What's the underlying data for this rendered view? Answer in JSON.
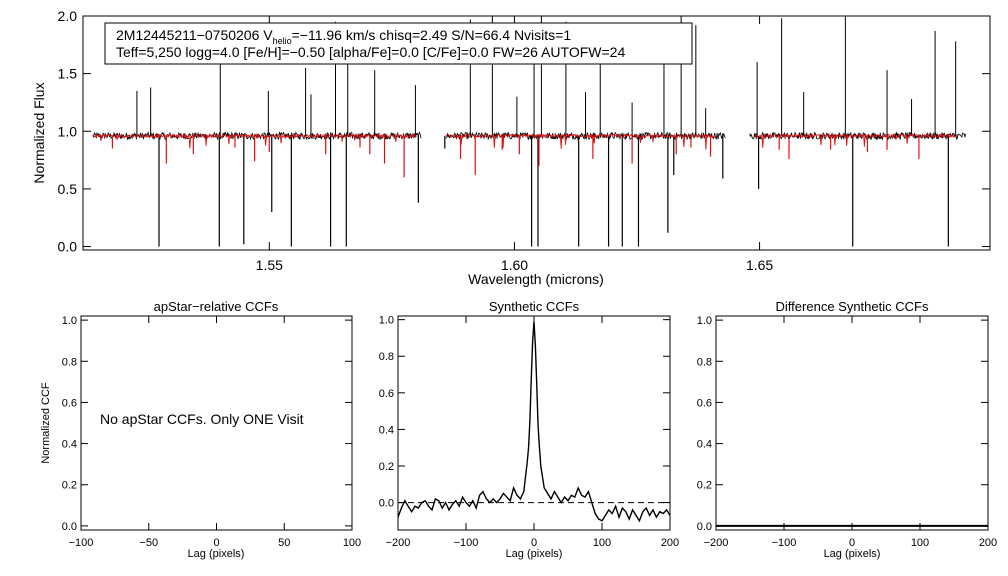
{
  "spectrum_panel": {
    "info_line1": "2M12445211−0750206  V",
    "info_sub": "helio",
    "info_line1b": "=−11.96 km/s  chisq=2.49  S/N=66.4  Nvisits=1",
    "info_line2": "Teff=5,250 logg=4.0 [Fe/H]=−0.50 [alpha/Fe]=0.0 [C/Fe]=0.0 FW=26 AUTOFW=24",
    "xlabel": "Wavelength (microns)",
    "ylabel": "Normalized Flux",
    "xticks": [
      "1.55",
      "1.60",
      "1.65"
    ],
    "yticks": [
      "0.0",
      "0.5",
      "1.0",
      "1.5",
      "2.0"
    ],
    "colors": {
      "observed": "#000000",
      "model": "#e01010"
    }
  },
  "ccf_panels": [
    {
      "title": "apStar−relative CCFs",
      "xlabel": "Lag (pixels)",
      "ylabel": "Normalized CCF",
      "xticks": [
        "−100",
        "−50",
        "0",
        "50",
        "100"
      ],
      "yticks": [
        "0.0",
        "0.2",
        "0.4",
        "0.6",
        "0.8",
        "1.0"
      ],
      "message": "No apStar CCFs.  Only ONE Visit"
    },
    {
      "title": "Synthetic CCFs",
      "xlabel": "Lag (pixels)",
      "xticks": [
        "−200",
        "−100",
        "0",
        "100",
        "200"
      ],
      "yticks": [
        "0.0",
        "0.2",
        "0.4",
        "0.6",
        "0.8",
        "1.0"
      ]
    },
    {
      "title": "Difference Synthetic CCFs",
      "xlabel": "Lag (pixels)",
      "xticks": [
        "−200",
        "−100",
        "0",
        "100",
        "200"
      ],
      "yticks": [
        "0.0",
        "0.2",
        "0.4",
        "0.6",
        "0.8",
        "1.0"
      ]
    }
  ],
  "chart_data": [
    {
      "type": "line",
      "xlabel": "Wavelength (microns)",
      "ylabel": "Normalized Flux",
      "xlim": [
        1.512,
        1.697
      ],
      "ylim": [
        -0.03,
        2.0
      ],
      "segments_observed": [
        [
          1.514,
          1.581
        ],
        [
          1.586,
          1.643
        ],
        [
          1.648,
          1.692
        ]
      ],
      "series": [
        {
          "continuum": 0.96,
          "absorption_lines": [
            [
              1.5275,
              0.0
            ],
            [
              1.5398,
              0.0
            ],
            [
              1.5448,
              0.02
            ],
            [
              1.5505,
              0.3
            ],
            [
              1.5545,
              0.0
            ],
            [
              1.5625,
              0.0
            ],
            [
              1.5657,
              0.0
            ],
            [
              1.6035,
              0.0
            ],
            [
              1.6048,
              0.0
            ],
            [
              1.6131,
              0.0
            ],
            [
              1.6192,
              0.0
            ],
            [
              1.622,
              0.0
            ],
            [
              1.6253,
              0.0
            ],
            [
              1.6313,
              0.12
            ],
            [
              1.6325,
              0.62
            ],
            [
              1.6425,
              0.59
            ],
            [
              1.6498,
              0.5
            ],
            [
              1.669,
              0.0
            ],
            [
              1.6885,
              0.0
            ],
            [
              1.5804,
              0.38
            ],
            [
              1.5858,
              0.85
            ]
          ],
          "emission_spikes": [
            [
              1.523,
              1.35
            ],
            [
              1.5258,
              1.38
            ],
            [
              1.54,
              1.85
            ],
            [
              1.5498,
              1.35
            ],
            [
              1.5574,
              1.55
            ],
            [
              1.5585,
              1.32
            ],
            [
              1.5635,
              1.95
            ],
            [
              1.566,
              1.68
            ],
            [
              1.5715,
              1.53
            ],
            [
              1.5798,
              1.4
            ],
            [
              1.591,
              1.97
            ],
            [
              1.5955,
              2.0
            ],
            [
              1.6005,
              1.3
            ],
            [
              1.604,
              1.65
            ],
            [
              1.6055,
              2.0
            ],
            [
              1.6105,
              1.95
            ],
            [
              1.6145,
              1.34
            ],
            [
              1.6175,
              1.75
            ],
            [
              1.624,
              1.25
            ],
            [
              1.6305,
              1.62
            ],
            [
              1.634,
              2.0
            ],
            [
              1.637,
              1.92
            ],
            [
              1.639,
              1.2
            ],
            [
              1.6495,
              1.6
            ],
            [
              1.6545,
              1.98
            ],
            [
              1.659,
              1.34
            ],
            [
              1.6675,
              2.0
            ],
            [
              1.676,
              1.53
            ],
            [
              1.681,
              1.28
            ],
            [
              1.6858,
              1.87
            ],
            [
              1.69,
              1.78
            ]
          ]
        },
        {
          "continuum": 0.96,
          "segments_model": [
            [
              1.514,
              1.58
            ],
            [
              1.586,
              1.641
            ],
            [
              1.649,
              1.69
            ]
          ],
          "absorption_lines": [
            [
              1.518,
              0.85
            ],
            [
              1.529,
              0.72
            ],
            [
              1.5345,
              0.8
            ],
            [
              1.543,
              0.86
            ],
            [
              1.547,
              0.74
            ],
            [
              1.55,
              0.82
            ],
            [
              1.5615,
              0.8
            ],
            [
              1.5685,
              0.86
            ],
            [
              1.5705,
              0.8
            ],
            [
              1.5735,
              0.72
            ],
            [
              1.5775,
              0.6
            ],
            [
              1.589,
              0.76
            ],
            [
              1.592,
              0.62
            ],
            [
              1.5975,
              0.84
            ],
            [
              1.601,
              0.8
            ],
            [
              1.605,
              0.7
            ],
            [
              1.616,
              0.76
            ],
            [
              1.624,
              0.72
            ],
            [
              1.633,
              0.8
            ],
            [
              1.636,
              0.86
            ],
            [
              1.64,
              0.78
            ],
            [
              1.654,
              0.84
            ],
            [
              1.656,
              0.76
            ],
            [
              1.6645,
              0.84
            ],
            [
              1.672,
              0.82
            ],
            [
              1.676,
              0.84
            ],
            [
              1.6825,
              0.76
            ]
          ]
        }
      ]
    },
    {
      "type": "line",
      "title": "apStar−relative CCFs",
      "xlabel": "Lag (pixels)",
      "ylabel": "Normalized CCF",
      "xlim": [
        -100,
        100
      ],
      "ylim": [
        -0.02,
        1.02
      ],
      "series": []
    },
    {
      "type": "line",
      "title": "Synthetic CCFs",
      "xlabel": "Lag (pixels)",
      "xlim": [
        -200,
        200
      ],
      "ylim": [
        -0.15,
        1.02
      ],
      "zero_line": 0.0,
      "series": [
        {
          "x": [
            -200,
            -195,
            -190,
            -185,
            -180,
            -175,
            -170,
            -165,
            -160,
            -155,
            -150,
            -145,
            -140,
            -135,
            -130,
            -125,
            -120,
            -115,
            -110,
            -105,
            -100,
            -95,
            -90,
            -85,
            -80,
            -75,
            -70,
            -65,
            -60,
            -55,
            -50,
            -45,
            -40,
            -35,
            -30,
            -25,
            -20,
            -15,
            -10,
            -8,
            -6,
            -4,
            -2,
            0,
            2,
            4,
            6,
            8,
            10,
            15,
            20,
            25,
            30,
            35,
            40,
            45,
            50,
            55,
            60,
            65,
            70,
            75,
            80,
            85,
            90,
            95,
            100,
            105,
            110,
            115,
            120,
            125,
            130,
            135,
            140,
            145,
            150,
            155,
            160,
            165,
            170,
            175,
            180,
            185,
            190,
            195,
            200
          ],
          "y": [
            -0.08,
            -0.03,
            0.01,
            -0.02,
            -0.05,
            -0.02,
            -0.03,
            0.0,
            0.01,
            -0.02,
            -0.04,
            0.02,
            0.01,
            -0.03,
            0.0,
            -0.04,
            -0.01,
            0.01,
            -0.02,
            0.03,
            0.0,
            -0.02,
            0.01,
            -0.03,
            0.04,
            0.06,
            0.02,
            0.0,
            0.02,
            0.0,
            0.02,
            0.05,
            0.03,
            0.01,
            0.08,
            0.04,
            0.02,
            0.06,
            0.22,
            0.3,
            0.45,
            0.68,
            0.88,
            0.99,
            0.86,
            0.65,
            0.42,
            0.3,
            0.2,
            0.08,
            0.05,
            0.02,
            0.06,
            0.03,
            0.0,
            0.03,
            0.01,
            0.04,
            0.03,
            0.08,
            0.04,
            0.03,
            0.06,
            0.0,
            -0.06,
            -0.09,
            -0.1,
            -0.07,
            -0.04,
            -0.06,
            -0.02,
            -0.08,
            -0.03,
            -0.05,
            -0.09,
            -0.04,
            -0.07,
            -0.1,
            -0.05,
            -0.03,
            -0.07,
            -0.04,
            -0.08,
            -0.05,
            -0.06,
            -0.04,
            -0.07
          ]
        }
      ]
    },
    {
      "type": "line",
      "title": "Difference Synthetic CCFs",
      "xlabel": "Lag (pixels)",
      "xlim": [
        -200,
        200
      ],
      "ylim": [
        -0.02,
        1.02
      ],
      "series": [
        {
          "x": [
            -200,
            200
          ],
          "y": [
            0.0,
            0.0
          ]
        }
      ]
    }
  ]
}
